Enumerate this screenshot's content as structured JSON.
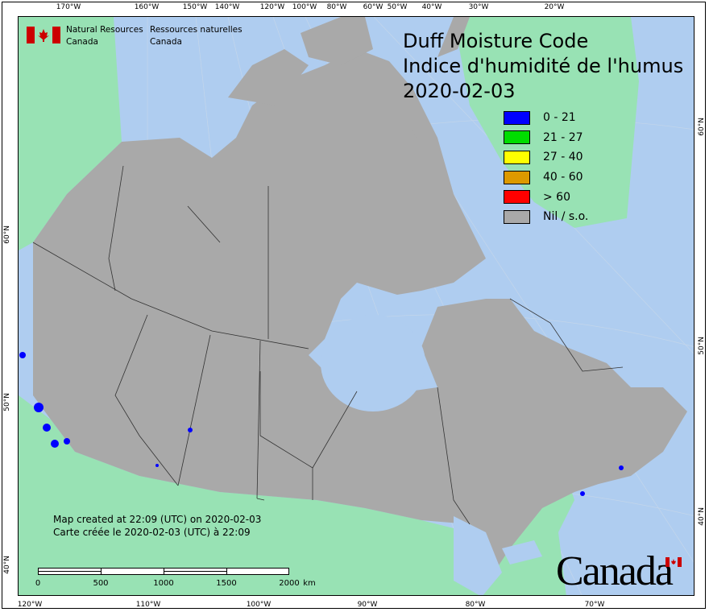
{
  "header": {
    "dept_en": [
      "Natural Resources",
      "Canada"
    ],
    "dept_fr": [
      "Ressources naturelles",
      "Canada"
    ]
  },
  "title": {
    "line1": "Duff Moisture Code",
    "line2": "Indice d'humidité de l'humus",
    "date": "2020-02-03"
  },
  "legend": [
    {
      "label": "0 - 21",
      "color": "#0000ff"
    },
    {
      "label": "21 - 27",
      "color": "#00dd00"
    },
    {
      "label": "27 - 40",
      "color": "#ffff00"
    },
    {
      "label": "40 - 60",
      "color": "#dd9900"
    },
    {
      "label": "> 60",
      "color": "#ff0000"
    },
    {
      "label": "Nil / s.o.",
      "color": "#a9a9a9"
    }
  ],
  "footer": {
    "created_en": "Map created at 22:09 (UTC) on 2020-02-03",
    "created_fr": "Carte créée le 2020-02-03 (UTC) à 22:09",
    "wordmark": "Canada"
  },
  "scale_bar": {
    "labels": [
      "0",
      "500",
      "1000",
      "1500",
      "2000"
    ],
    "unit": "km"
  },
  "graticule": {
    "top": [
      "170°W",
      "160°W",
      "150°W",
      "140°W",
      "120°W",
      "100°W",
      "80°W",
      "60°W",
      "50°W",
      "40°W",
      "30°W",
      "20°W"
    ],
    "bottom": [
      "120°W",
      "110°W",
      "100°W",
      "90°W",
      "80°W",
      "70°W"
    ],
    "left": [
      "60°N",
      "50°N",
      "40°N"
    ],
    "right": [
      "60°N",
      "50°N",
      "40°N"
    ]
  },
  "colors": {
    "water": "#afcdf0",
    "land_other": "#98e2b4",
    "canada_nil": "#a9a9a9"
  }
}
